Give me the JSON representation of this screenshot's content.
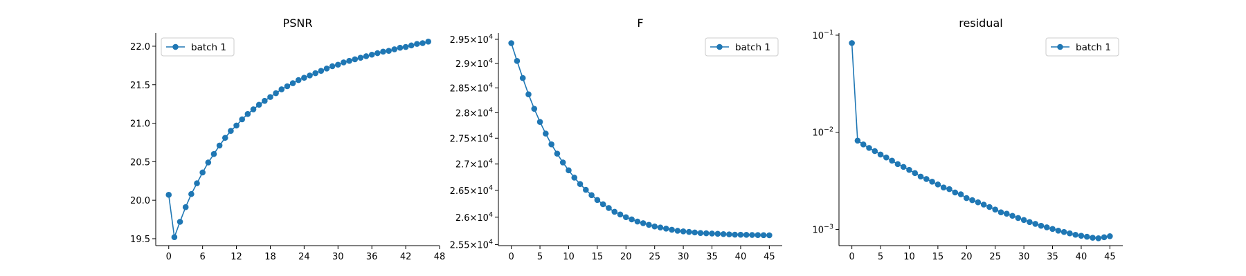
{
  "chart_data": [
    {
      "type": "line",
      "title": "PSNR",
      "legend": "upper left",
      "x_ticks": [
        "0",
        "6",
        "12",
        "18",
        "24",
        "30",
        "36",
        "42",
        "48"
      ],
      "y_ticks": [
        "19.5",
        "20.0",
        "20.5",
        "21.0",
        "21.5",
        "22.0"
      ],
      "series": [
        {
          "name": "batch 1",
          "color": "#1f77b4",
          "x": [
            0,
            1,
            2,
            3,
            4,
            5,
            6,
            7,
            8,
            9,
            10,
            11,
            12,
            13,
            14,
            15,
            16,
            17,
            18,
            19,
            20,
            21,
            22,
            23,
            24,
            25,
            26,
            27,
            28,
            29,
            30,
            31,
            32,
            33,
            34,
            35,
            36,
            37,
            38,
            39,
            40,
            41,
            42,
            43,
            44,
            45,
            46
          ],
          "y": [
            20.07,
            19.52,
            19.72,
            19.91,
            20.08,
            20.22,
            20.36,
            20.49,
            20.6,
            20.71,
            20.81,
            20.9,
            20.97,
            21.05,
            21.12,
            21.18,
            21.24,
            21.29,
            21.34,
            21.39,
            21.44,
            21.48,
            21.52,
            21.56,
            21.59,
            21.62,
            21.65,
            21.68,
            21.71,
            21.74,
            21.76,
            21.79,
            21.81,
            21.83,
            21.85,
            21.87,
            21.89,
            21.91,
            21.93,
            21.94,
            21.96,
            21.98,
            21.99,
            22.01,
            22.03,
            22.04,
            22.06
          ]
        }
      ]
    },
    {
      "type": "line",
      "title": "F",
      "legend": "upper right",
      "yscale": "log",
      "x_ticks": [
        "0",
        "5",
        "10",
        "15",
        "20",
        "25",
        "30",
        "35",
        "40",
        "45"
      ],
      "y_ticks": [
        {
          "mant": "2.55",
          "exp": "4"
        },
        {
          "mant": "2.6",
          "exp": "4"
        },
        {
          "mant": "2.65",
          "exp": "4"
        },
        {
          "mant": "2.7",
          "exp": "4"
        },
        {
          "mant": "2.75",
          "exp": "4"
        },
        {
          "mant": "2.8",
          "exp": "4"
        },
        {
          "mant": "2.85",
          "exp": "4"
        },
        {
          "mant": "2.9",
          "exp": "4"
        },
        {
          "mant": "2.95",
          "exp": "4"
        }
      ],
      "series": [
        {
          "name": "batch 1",
          "color": "#1f77b4",
          "x": [
            0,
            1,
            2,
            3,
            4,
            5,
            6,
            7,
            8,
            9,
            10,
            11,
            12,
            13,
            14,
            15,
            16,
            17,
            18,
            19,
            20,
            21,
            22,
            23,
            24,
            25,
            26,
            27,
            28,
            29,
            30,
            31,
            32,
            33,
            34,
            35,
            36,
            37,
            38,
            39,
            40,
            41,
            42,
            43,
            44,
            45
          ],
          "y": [
            29420,
            29050,
            28700,
            28370,
            28080,
            27820,
            27590,
            27380,
            27200,
            27030,
            26880,
            26740,
            26620,
            26510,
            26410,
            26320,
            26240,
            26170,
            26100,
            26050,
            26000,
            25960,
            25920,
            25890,
            25860,
            25830,
            25810,
            25790,
            25770,
            25750,
            25740,
            25730,
            25720,
            25710,
            25705,
            25700,
            25695,
            25690,
            25685,
            25680,
            25678,
            25676,
            25674,
            25672,
            25670,
            25668
          ]
        }
      ]
    },
    {
      "type": "line",
      "title": "residual",
      "legend": "upper right",
      "yscale": "log",
      "x_ticks": [
        "0",
        "5",
        "10",
        "15",
        "20",
        "25",
        "30",
        "35",
        "40",
        "45"
      ],
      "y_ticks": [
        {
          "mant": "10",
          "exp": "−3",
          "value": 0.001
        },
        {
          "mant": "10",
          "exp": "−2",
          "value": 0.01
        },
        {
          "mant": "10",
          "exp": "−1",
          "value": 0.1
        }
      ],
      "series": [
        {
          "name": "batch 1",
          "color": "#1f77b4",
          "x": [
            0,
            1,
            2,
            3,
            4,
            5,
            6,
            7,
            8,
            9,
            10,
            11,
            12,
            13,
            14,
            15,
            16,
            17,
            18,
            19,
            20,
            21,
            22,
            23,
            24,
            25,
            26,
            27,
            28,
            29,
            30,
            31,
            32,
            33,
            34,
            35,
            36,
            37,
            38,
            39,
            40,
            41,
            42,
            43,
            44,
            45
          ],
          "y": [
            0.083,
            0.0082,
            0.0075,
            0.0069,
            0.0064,
            0.0059,
            0.0055,
            0.0051,
            0.0047,
            0.0044,
            0.0041,
            0.0038,
            0.0035,
            0.0033,
            0.0031,
            0.0029,
            0.0027,
            0.0026,
            0.0024,
            0.0023,
            0.0021,
            0.002,
            0.0019,
            0.0018,
            0.0017,
            0.0016,
            0.0015,
            0.00145,
            0.00138,
            0.00131,
            0.00125,
            0.00119,
            0.00114,
            0.00109,
            0.00105,
            0.00101,
            0.00097,
            0.00094,
            0.00091,
            0.00088,
            0.00086,
            0.00084,
            0.00082,
            0.00081,
            0.00083,
            0.00085
          ]
        }
      ]
    }
  ]
}
